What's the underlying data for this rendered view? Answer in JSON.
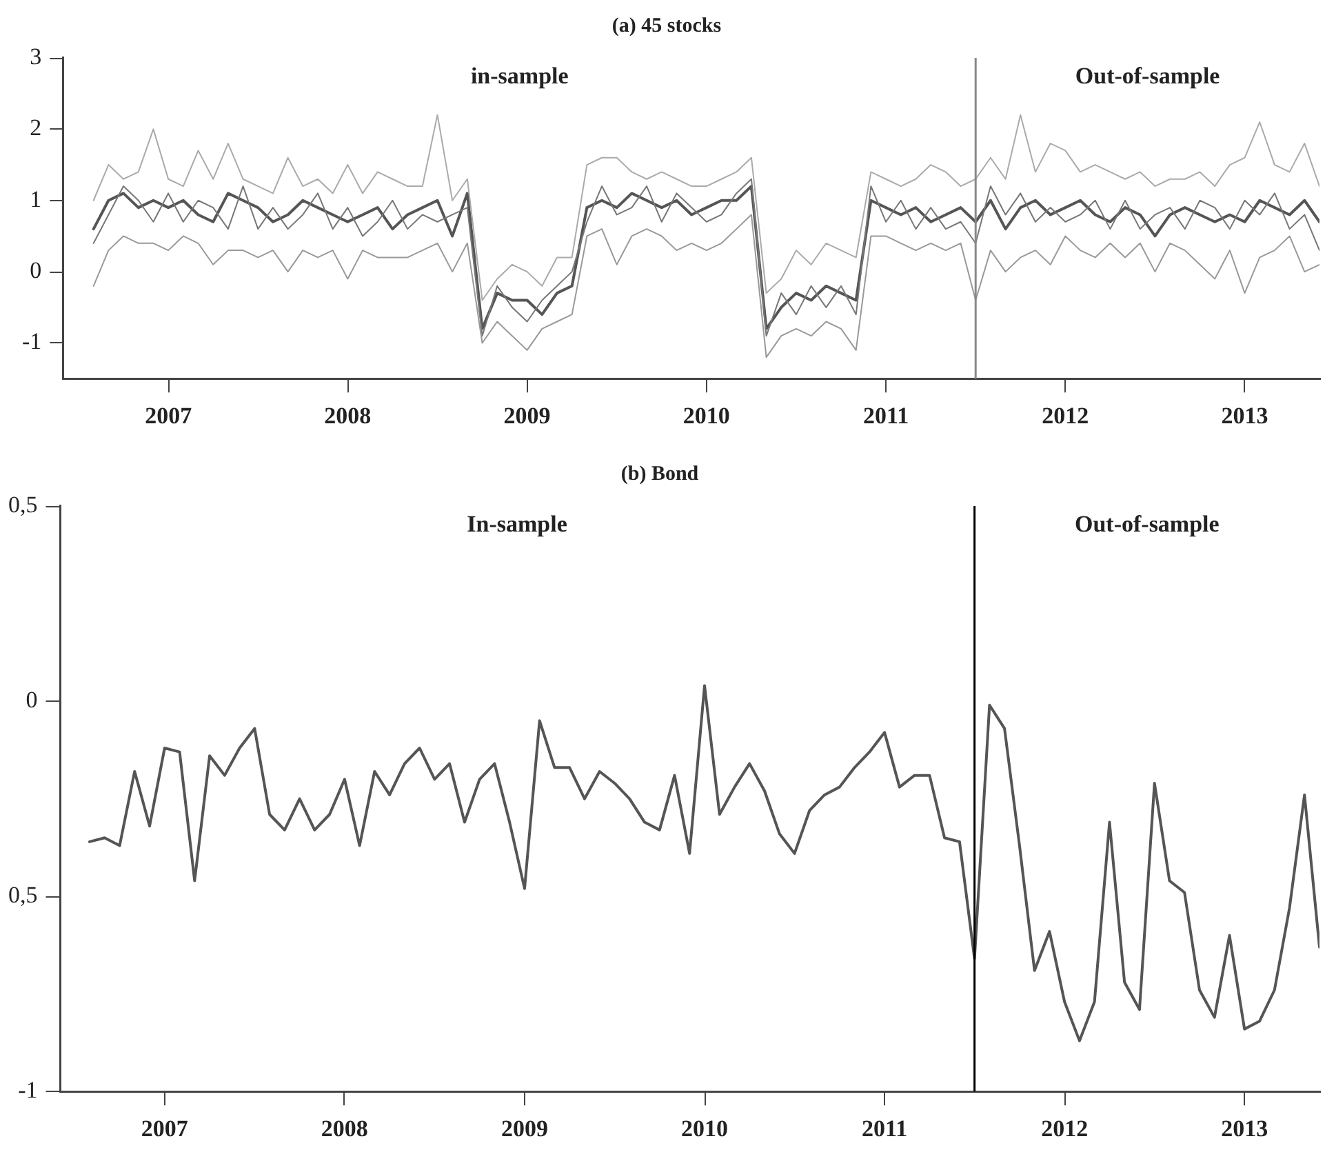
{
  "chart_data": [
    {
      "type": "line",
      "title": "(a) 45 stocks",
      "x": [
        "2006-08",
        "2006-09",
        "2006-10",
        "2006-11",
        "2006-12",
        "2007-01",
        "2007-02",
        "2007-03",
        "2007-04",
        "2007-05",
        "2007-06",
        "2007-07",
        "2007-08",
        "2007-09",
        "2007-10",
        "2007-11",
        "2007-12",
        "2008-01",
        "2008-02",
        "2008-03",
        "2008-04",
        "2008-05",
        "2008-06",
        "2008-07",
        "2008-08",
        "2008-09",
        "2008-10",
        "2008-11",
        "2008-12",
        "2009-01",
        "2009-02",
        "2009-03",
        "2009-04",
        "2009-05",
        "2009-06",
        "2009-07",
        "2009-08",
        "2009-09",
        "2009-10",
        "2009-11",
        "2009-12",
        "2010-01",
        "2010-02",
        "2010-03",
        "2010-04",
        "2010-05",
        "2010-06",
        "2010-07",
        "2010-08",
        "2010-09",
        "2010-10",
        "2010-11",
        "2010-12",
        "2011-01",
        "2011-02",
        "2011-03",
        "2011-04",
        "2011-05",
        "2011-06",
        "2011-07",
        "2011-08",
        "2011-09",
        "2011-10",
        "2011-11",
        "2011-12",
        "2012-01",
        "2012-02",
        "2012-03",
        "2012-04",
        "2012-05",
        "2012-06",
        "2012-07",
        "2012-08",
        "2012-09",
        "2012-10",
        "2012-11",
        "2012-12",
        "2013-01",
        "2013-02",
        "2013-03",
        "2013-04",
        "2013-05",
        "2013-06"
      ],
      "series": [
        {
          "color": "#aaaaaa",
          "values": [
            1.0,
            1.5,
            1.3,
            1.4,
            2.0,
            1.3,
            1.2,
            1.7,
            1.3,
            1.8,
            1.3,
            1.2,
            1.1,
            1.6,
            1.2,
            1.3,
            1.1,
            1.5,
            1.1,
            1.4,
            1.3,
            1.2,
            1.2,
            2.2,
            1.0,
            1.3,
            -0.4,
            -0.1,
            0.1,
            0.0,
            -0.2,
            0.2,
            0.2,
            1.5,
            1.6,
            1.6,
            1.4,
            1.3,
            1.4,
            1.3,
            1.2,
            1.2,
            1.3,
            1.4,
            1.6,
            -0.3,
            -0.1,
            0.3,
            0.1,
            0.4,
            0.3,
            0.2,
            1.4,
            1.3,
            1.2,
            1.3,
            1.5,
            1.4,
            1.2,
            1.3,
            1.6,
            1.3,
            2.2,
            1.4,
            1.8,
            1.7,
            1.4,
            1.5,
            1.4,
            1.3,
            1.4,
            1.2,
            1.3,
            1.3,
            1.4,
            1.2,
            1.5,
            1.6,
            2.1,
            1.5,
            1.4,
            1.8,
            1.2
          ]
        },
        {
          "color": "#999999",
          "values": [
            -0.2,
            0.3,
            0.5,
            0.4,
            0.4,
            0.3,
            0.5,
            0.4,
            0.1,
            0.3,
            0.3,
            0.2,
            0.3,
            0.0,
            0.3,
            0.2,
            0.3,
            -0.1,
            0.3,
            0.2,
            0.2,
            0.2,
            0.3,
            0.4,
            0.0,
            0.4,
            -1.0,
            -0.7,
            -0.9,
            -1.1,
            -0.8,
            -0.7,
            -0.6,
            0.5,
            0.6,
            0.1,
            0.5,
            0.6,
            0.5,
            0.3,
            0.4,
            0.3,
            0.4,
            0.6,
            0.8,
            -1.2,
            -0.9,
            -0.8,
            -0.9,
            -0.7,
            -0.8,
            -1.1,
            0.5,
            0.5,
            0.4,
            0.3,
            0.4,
            0.3,
            0.4,
            -0.4,
            0.3,
            0.0,
            0.2,
            0.3,
            0.1,
            0.5,
            0.3,
            0.2,
            0.4,
            0.2,
            0.4,
            0.0,
            0.4,
            0.3,
            0.1,
            -0.1,
            0.3,
            -0.3,
            0.2,
            0.3,
            0.5,
            0.0,
            0.1
          ]
        },
        {
          "color": "#777777",
          "values": [
            0.4,
            0.8,
            1.2,
            1.0,
            0.7,
            1.1,
            0.7,
            1.0,
            0.9,
            0.6,
            1.2,
            0.6,
            0.9,
            0.6,
            0.8,
            1.1,
            0.6,
            0.9,
            0.5,
            0.7,
            1.0,
            0.6,
            0.8,
            0.7,
            0.8,
            0.9,
            -0.9,
            -0.2,
            -0.5,
            -0.7,
            -0.4,
            -0.2,
            0.0,
            0.7,
            1.2,
            0.8,
            0.9,
            1.2,
            0.7,
            1.1,
            0.9,
            0.7,
            0.8,
            1.1,
            1.3,
            -0.9,
            -0.3,
            -0.6,
            -0.2,
            -0.5,
            -0.2,
            -0.6,
            1.2,
            0.7,
            1.0,
            0.6,
            0.9,
            0.6,
            0.7,
            0.4,
            1.2,
            0.8,
            1.1,
            0.7,
            0.9,
            0.7,
            0.8,
            1.0,
            0.6,
            1.0,
            0.6,
            0.8,
            0.9,
            0.6,
            1.0,
            0.9,
            0.6,
            1.0,
            0.8,
            1.1,
            0.6,
            0.8,
            0.3
          ]
        },
        {
          "color": "#555555",
          "values": [
            0.6,
            1.0,
            1.1,
            0.9,
            1.0,
            0.9,
            1.0,
            0.8,
            0.7,
            1.1,
            1.0,
            0.9,
            0.7,
            0.8,
            1.0,
            0.9,
            0.8,
            0.7,
            0.8,
            0.9,
            0.6,
            0.8,
            0.9,
            1.0,
            0.5,
            1.1,
            -0.8,
            -0.3,
            -0.4,
            -0.4,
            -0.6,
            -0.3,
            -0.2,
            0.9,
            1.0,
            0.9,
            1.1,
            1.0,
            0.9,
            1.0,
            0.8,
            0.9,
            1.0,
            1.0,
            1.2,
            -0.8,
            -0.5,
            -0.3,
            -0.4,
            -0.2,
            -0.3,
            -0.4,
            1.0,
            0.9,
            0.8,
            0.9,
            0.7,
            0.8,
            0.9,
            0.7,
            1.0,
            0.6,
            0.9,
            1.0,
            0.8,
            0.9,
            1.0,
            0.8,
            0.7,
            0.9,
            0.8,
            0.5,
            0.8,
            0.9,
            0.8,
            0.7,
            0.8,
            0.7,
            1.0,
            0.9,
            0.8,
            1.0,
            0.7
          ]
        }
      ],
      "xlim": [
        "2006-06",
        "2013-06"
      ],
      "xticks": [
        "2007",
        "2008",
        "2009",
        "2010",
        "2011",
        "2012",
        "2013"
      ],
      "ylim": [
        -1.5,
        3
      ],
      "yticks": [
        -1,
        0,
        1,
        2,
        3
      ],
      "grid": false,
      "legend": false,
      "marker": "none",
      "ref_lines": [
        {
          "axis": "x",
          "value": "2011-07",
          "color": "#888888"
        }
      ],
      "annotations": [
        "in-sample",
        "Out-of-sample"
      ]
    },
    {
      "type": "line",
      "title": "(b) Bond",
      "x": [
        "2006-08",
        "2006-09",
        "2006-10",
        "2006-11",
        "2006-12",
        "2007-01",
        "2007-02",
        "2007-03",
        "2007-04",
        "2007-05",
        "2007-06",
        "2007-07",
        "2007-08",
        "2007-09",
        "2007-10",
        "2007-11",
        "2007-12",
        "2008-01",
        "2008-02",
        "2008-03",
        "2008-04",
        "2008-05",
        "2008-06",
        "2008-07",
        "2008-08",
        "2008-09",
        "2008-10",
        "2008-11",
        "2008-12",
        "2009-01",
        "2009-02",
        "2009-03",
        "2009-04",
        "2009-05",
        "2009-06",
        "2009-07",
        "2009-08",
        "2009-09",
        "2009-10",
        "2009-11",
        "2009-12",
        "2010-01",
        "2010-02",
        "2010-03",
        "2010-04",
        "2010-05",
        "2010-06",
        "2010-07",
        "2010-08",
        "2010-09",
        "2010-10",
        "2010-11",
        "2010-12",
        "2011-01",
        "2011-02",
        "2011-03",
        "2011-04",
        "2011-05",
        "2011-06",
        "2011-07",
        "2011-08",
        "2011-09",
        "2011-10",
        "2011-11",
        "2011-12",
        "2012-01",
        "2012-02",
        "2012-03",
        "2012-04",
        "2012-05",
        "2012-06",
        "2012-07",
        "2012-08",
        "2012-09",
        "2012-10",
        "2012-11",
        "2012-12",
        "2013-01",
        "2013-02",
        "2013-03",
        "2013-04",
        "2013-05",
        "2013-06"
      ],
      "series": [
        {
          "color": "#555555",
          "values": [
            -0.36,
            -0.35,
            -0.37,
            -0.18,
            -0.32,
            -0.12,
            -0.13,
            -0.46,
            -0.14,
            -0.19,
            -0.12,
            -0.07,
            -0.29,
            -0.33,
            -0.25,
            -0.33,
            -0.29,
            -0.2,
            -0.37,
            -0.18,
            -0.24,
            -0.16,
            -0.12,
            -0.2,
            -0.16,
            -0.31,
            -0.2,
            -0.16,
            -0.31,
            -0.48,
            -0.05,
            -0.17,
            -0.17,
            -0.25,
            -0.18,
            -0.21,
            -0.25,
            -0.31,
            -0.33,
            -0.19,
            -0.39,
            0.04,
            -0.29,
            -0.22,
            -0.16,
            -0.23,
            -0.34,
            -0.39,
            -0.28,
            -0.24,
            -0.22,
            -0.17,
            -0.13,
            -0.08,
            -0.22,
            -0.19,
            -0.19,
            -0.35,
            -0.36,
            -0.66,
            -0.01,
            -0.07,
            -0.37,
            -0.69,
            -0.59,
            -0.77,
            -0.87,
            -0.77,
            -0.31,
            -0.72,
            -0.79,
            -0.21,
            -0.46,
            -0.49,
            -0.74,
            -0.81,
            -0.6,
            -0.84,
            -0.82,
            -0.74,
            -0.53,
            -0.24,
            -0.63
          ]
        }
      ],
      "xlim": [
        "2006-06",
        "2013-06"
      ],
      "xticks": [
        "2007",
        "2008",
        "2009",
        "2010",
        "2011",
        "2012",
        "2013"
      ],
      "ylim": [
        -1,
        0.5
      ],
      "yticks": [
        {
          "value": 0.5,
          "label": "0,5"
        },
        0,
        {
          "value": -0.5,
          "label": "0,5"
        },
        -1
      ],
      "grid": false,
      "legend": false,
      "marker": "none",
      "ref_lines": [
        {
          "axis": "x",
          "value": "2011-07",
          "color": "#000000"
        }
      ],
      "annotations": [
        "In-sample",
        "Out-of-sample"
      ]
    }
  ]
}
